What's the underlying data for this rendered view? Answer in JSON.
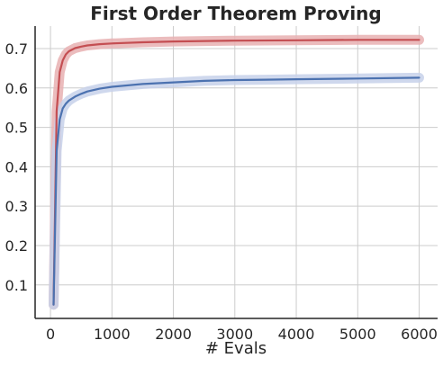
{
  "chart_data": {
    "type": "line",
    "title": "First Order Theorem Proving",
    "xlabel": "# Evals",
    "ylabel": "",
    "xlim": [
      -250,
      6300
    ],
    "ylim": [
      0.015,
      0.757
    ],
    "xticks": [
      0,
      1000,
      2000,
      3000,
      4000,
      5000,
      6000
    ],
    "yticks": [
      0.1,
      0.2,
      0.3,
      0.4,
      0.5,
      0.6,
      0.7
    ],
    "grid": true,
    "legend": "none",
    "series": [
      {
        "color": "#c44e52",
        "band_color": "#e8b0b2",
        "x": [
          50,
          100,
          150,
          200,
          250,
          300,
          400,
          500,
          600,
          800,
          1000,
          1500,
          2000,
          2500,
          3000,
          4000,
          5000,
          6000
        ],
        "y": [
          0.05,
          0.54,
          0.64,
          0.67,
          0.685,
          0.693,
          0.701,
          0.705,
          0.708,
          0.711,
          0.713,
          0.716,
          0.718,
          0.719,
          0.72,
          0.721,
          0.722,
          0.722
        ]
      },
      {
        "color": "#4c72b0",
        "band_color": "#c7d1ea",
        "x": [
          50,
          100,
          150,
          200,
          250,
          300,
          400,
          500,
          600,
          800,
          1000,
          1500,
          2000,
          2500,
          3000,
          3500,
          4000,
          5000,
          6000
        ],
        "y": [
          0.05,
          0.44,
          0.52,
          0.548,
          0.56,
          0.568,
          0.578,
          0.585,
          0.591,
          0.598,
          0.603,
          0.61,
          0.614,
          0.618,
          0.62,
          0.621,
          0.622,
          0.624,
          0.626
        ]
      }
    ]
  }
}
